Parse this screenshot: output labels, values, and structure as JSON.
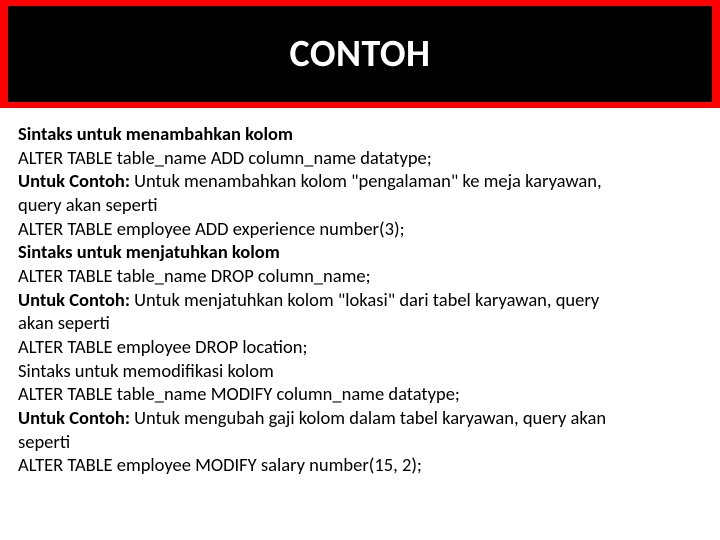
{
  "colors": {
    "header_bg": "#ff0000",
    "title_box_bg": "#000000",
    "title_text": "#ffffff",
    "body_text": "#000000",
    "slide_bg": "#ffffff"
  },
  "typography": {
    "title_fontsize": 38,
    "body_fontsize": 18.5,
    "font_family": "Calibri, Arial, sans-serif"
  },
  "title": "CONTOH",
  "lines": {
    "l1_bold": "Sintaks untuk menambahkan kolom",
    "l2": "ALTER TABLE table_name ADD column_name datatype;",
    "l3_bold": "Untuk Contoh:",
    "l3_rest": " Untuk menambahkan kolom \"pengalaman\" ke meja karyawan,",
    "l4": "query akan seperti",
    "l5": "ALTER TABLE employee ADD experience number(3);",
    "l6_bold": "Sintaks untuk menjatuhkan kolom",
    "l7": "ALTER TABLE table_name DROP column_name;",
    "l8_bold": "Untuk Contoh:",
    "l8_rest": " Untuk menjatuhkan kolom \"lokasi\" dari tabel karyawan, query",
    "l9": "akan seperti",
    "l10": "ALTER TABLE employee DROP location;",
    "l11": "Sintaks untuk memodifikasi kolom",
    "l12": "ALTER TABLE table_name MODIFY column_name datatype;",
    "l13_bold": "Untuk Contoh:",
    "l13_rest": " Untuk mengubah gaji kolom dalam tabel karyawan, query akan",
    "l14": "seperti",
    "l15": "ALTER TABLE employee MODIFY salary number(15, 2);"
  }
}
